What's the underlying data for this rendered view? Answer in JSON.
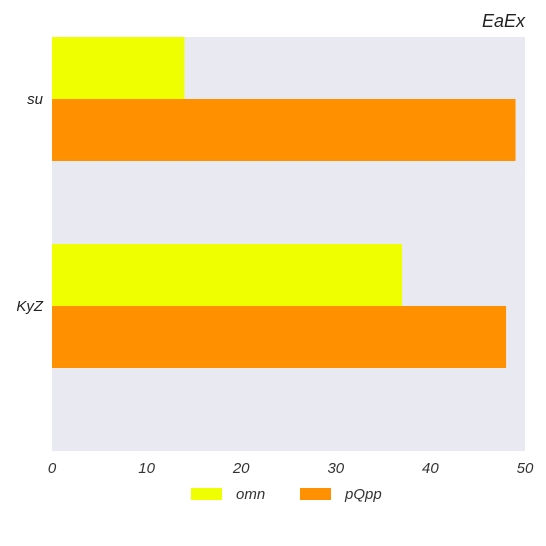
{
  "chart_data": {
    "type": "bar",
    "orientation": "horizontal",
    "title": "EaEx",
    "categories": [
      "su",
      "KyZ"
    ],
    "series": [
      {
        "name": "omn",
        "values": [
          14,
          37
        ],
        "color": "#f0ff00"
      },
      {
        "name": "pQpp",
        "values": [
          49,
          48
        ],
        "color": "#ff9100"
      }
    ],
    "xlim": [
      0,
      50
    ],
    "xticks": [
      0,
      10,
      20,
      30,
      40,
      50
    ],
    "xlabel": "",
    "ylabel": "",
    "grid": false,
    "legend_position": "bottom"
  }
}
